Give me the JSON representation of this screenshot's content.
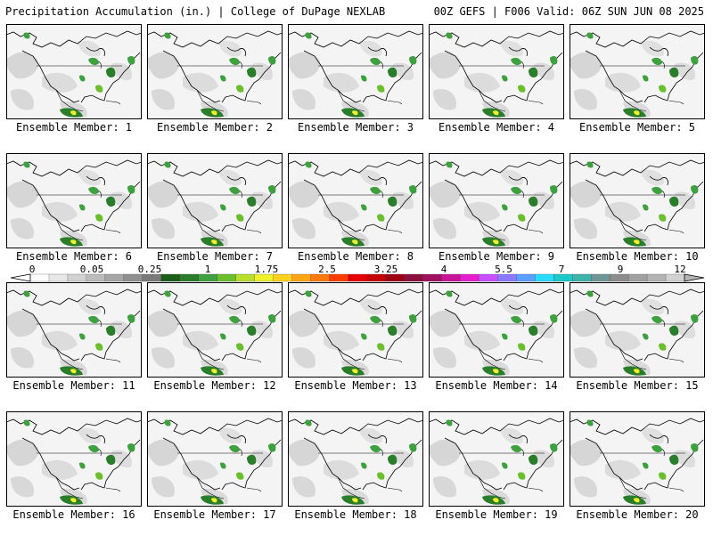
{
  "header": {
    "left_title": "Precipitation Accumulation (in.) | College of DuPage NEXLAB",
    "right_title": "00Z GEFS | F006 Valid: 06Z SUN JUN 08 2025"
  },
  "panels": [
    {
      "label": "Ensemble Member: 1"
    },
    {
      "label": "Ensemble Member: 2"
    },
    {
      "label": "Ensemble Member: 3"
    },
    {
      "label": "Ensemble Member: 4"
    },
    {
      "label": "Ensemble Member: 5"
    },
    {
      "label": "Ensemble Member: 6"
    },
    {
      "label": "Ensemble Member: 7"
    },
    {
      "label": "Ensemble Member: 8"
    },
    {
      "label": "Ensemble Member: 9"
    },
    {
      "label": "Ensemble Member: 10"
    },
    {
      "label": "Ensemble Member: 11"
    },
    {
      "label": "Ensemble Member: 12"
    },
    {
      "label": "Ensemble Member: 13"
    },
    {
      "label": "Ensemble Member: 14"
    },
    {
      "label": "Ensemble Member: 15"
    },
    {
      "label": "Ensemble Member: 16"
    },
    {
      "label": "Ensemble Member: 17"
    },
    {
      "label": "Ensemble Member: 18"
    },
    {
      "label": "Ensemble Member: 19"
    },
    {
      "label": "Ensemble Member: 20"
    }
  ],
  "colorbar": {
    "tick_labels": [
      "0",
      "0.05",
      "0.25",
      "1",
      "1.75",
      "2.5",
      "3.25",
      "4",
      "5.5",
      "7",
      "9",
      "12"
    ],
    "colors": [
      "#ffffff",
      "#e8e8e8",
      "#d2d2d2",
      "#bcbcbc",
      "#a6a6a6",
      "#909090",
      "#7a7a7a",
      "#1a5e1a",
      "#2a7d2a",
      "#3ea03e",
      "#6bbf2c",
      "#b8e02a",
      "#f0f02a",
      "#ffd21e",
      "#ffa514",
      "#ff780a",
      "#ff3c00",
      "#e60000",
      "#c80000",
      "#a00014",
      "#8c0f3c",
      "#a0125f",
      "#c81496",
      "#e61ecd",
      "#c850ff",
      "#8c78ff",
      "#5aa0ff",
      "#28dcff",
      "#1ec8c8",
      "#3cb4aa",
      "#6e9696",
      "#8c8c8c",
      "#a0a0a0",
      "#b4b4b4",
      "#d2d2d2"
    ]
  }
}
